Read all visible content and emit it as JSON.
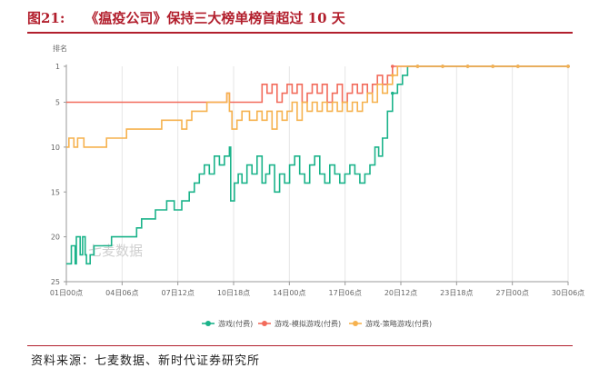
{
  "figure": {
    "number": "图21:",
    "title": "《瘟疫公司》保持三大榜单榜首超过 10 天",
    "source": "资料来源：七麦数据、新时代证券研究所"
  },
  "watermark": "七麦数据",
  "chart_data": {
    "type": "line",
    "ylabel": "排名",
    "ylim": [
      25,
      1
    ],
    "y_inverted": true,
    "yticks": [
      "1",
      "5",
      "10",
      "15",
      "20",
      "25"
    ],
    "xlim": [
      0,
      20
    ],
    "xtick_labels": [
      "01日00点",
      "04日06点",
      "07日12点",
      "10日18点",
      "14日00点",
      "17日06点",
      "20日12点",
      "23日18点",
      "27日00点",
      "30日06点"
    ],
    "grid": "vertical",
    "legend_position": "bottom",
    "series": [
      {
        "name": "游戏(付费)",
        "color": "#1bb38a",
        "points": [
          [
            0,
            23
          ],
          [
            0.2,
            21
          ],
          [
            0.35,
            23
          ],
          [
            0.4,
            20
          ],
          [
            0.55,
            22
          ],
          [
            0.65,
            20
          ],
          [
            0.75,
            22
          ],
          [
            0.8,
            23
          ],
          [
            0.95,
            22
          ],
          [
            1.1,
            21
          ],
          [
            1.5,
            21
          ],
          [
            1.8,
            20
          ],
          [
            2.6,
            20
          ],
          [
            2.8,
            19
          ],
          [
            3.0,
            18
          ],
          [
            3.4,
            18
          ],
          [
            3.55,
            17
          ],
          [
            3.8,
            17
          ],
          [
            4.0,
            16
          ],
          [
            4.3,
            17
          ],
          [
            4.6,
            16
          ],
          [
            4.9,
            15
          ],
          [
            5.1,
            14
          ],
          [
            5.3,
            13
          ],
          [
            5.5,
            12
          ],
          [
            5.7,
            13
          ],
          [
            5.9,
            11
          ],
          [
            6.1,
            12
          ],
          [
            6.3,
            11
          ],
          [
            6.5,
            10
          ],
          [
            6.55,
            16
          ],
          [
            6.7,
            14
          ],
          [
            6.85,
            13
          ],
          [
            7.0,
            14
          ],
          [
            7.2,
            12
          ],
          [
            7.4,
            13
          ],
          [
            7.6,
            11
          ],
          [
            7.8,
            14
          ],
          [
            7.95,
            13
          ],
          [
            8.1,
            12
          ],
          [
            8.3,
            15
          ],
          [
            8.5,
            13
          ],
          [
            8.7,
            14
          ],
          [
            8.9,
            12
          ],
          [
            9.1,
            11
          ],
          [
            9.3,
            13
          ],
          [
            9.5,
            14
          ],
          [
            9.7,
            12
          ],
          [
            9.9,
            11
          ],
          [
            10.1,
            13
          ],
          [
            10.3,
            14
          ],
          [
            10.5,
            12
          ],
          [
            10.7,
            13
          ],
          [
            10.9,
            14
          ],
          [
            11.1,
            13
          ],
          [
            11.3,
            12
          ],
          [
            11.5,
            13
          ],
          [
            11.7,
            14
          ],
          [
            11.9,
            13
          ],
          [
            12.1,
            12
          ],
          [
            12.3,
            10
          ],
          [
            12.45,
            11
          ],
          [
            12.6,
            9
          ],
          [
            12.8,
            6
          ],
          [
            13.0,
            4
          ],
          [
            13.2,
            3
          ],
          [
            13.4,
            2
          ],
          [
            13.6,
            1
          ],
          [
            14.0,
            1
          ],
          [
            15.0,
            1
          ],
          [
            16.0,
            1
          ],
          [
            17.0,
            1
          ],
          [
            18.0,
            1
          ],
          [
            20.0,
            1
          ]
        ]
      },
      {
        "name": "游戏-模拟游戏(付费)",
        "color": "#f26b5b",
        "points": [
          [
            0,
            5
          ],
          [
            1.5,
            5
          ],
          [
            3,
            5
          ],
          [
            4.5,
            5
          ],
          [
            5.8,
            5
          ],
          [
            6.3,
            5
          ],
          [
            6.4,
            4
          ],
          [
            6.5,
            5
          ],
          [
            7.7,
            5
          ],
          [
            7.8,
            3
          ],
          [
            8.0,
            4
          ],
          [
            8.2,
            3
          ],
          [
            8.4,
            5
          ],
          [
            8.6,
            4
          ],
          [
            8.8,
            3
          ],
          [
            9.0,
            4
          ],
          [
            9.2,
            3
          ],
          [
            9.4,
            5
          ],
          [
            9.6,
            4
          ],
          [
            9.8,
            3
          ],
          [
            10.0,
            4
          ],
          [
            10.2,
            3
          ],
          [
            10.4,
            5
          ],
          [
            10.6,
            4
          ],
          [
            10.8,
            3
          ],
          [
            11.0,
            5
          ],
          [
            11.2,
            4
          ],
          [
            11.4,
            3
          ],
          [
            11.6,
            4
          ],
          [
            11.8,
            3
          ],
          [
            12.0,
            4
          ],
          [
            12.2,
            3
          ],
          [
            12.4,
            2
          ],
          [
            12.6,
            3
          ],
          [
            12.8,
            2
          ],
          [
            13.0,
            1
          ],
          [
            13.2,
            1
          ],
          [
            14,
            1
          ],
          [
            15,
            1
          ],
          [
            16,
            1
          ],
          [
            17,
            1
          ],
          [
            18,
            1
          ],
          [
            20,
            1
          ]
        ]
      },
      {
        "name": "游戏-策略游戏(付费)",
        "color": "#f6b24f",
        "points": [
          [
            0,
            10
          ],
          [
            0.1,
            9
          ],
          [
            0.3,
            10
          ],
          [
            0.45,
            9
          ],
          [
            0.7,
            10
          ],
          [
            1.0,
            10
          ],
          [
            1.3,
            10
          ],
          [
            1.6,
            9
          ],
          [
            2.0,
            9
          ],
          [
            2.4,
            8
          ],
          [
            3.0,
            8
          ],
          [
            3.6,
            8
          ],
          [
            3.8,
            7
          ],
          [
            4.5,
            7
          ],
          [
            4.6,
            8
          ],
          [
            4.8,
            7
          ],
          [
            5.0,
            6
          ],
          [
            5.3,
            6
          ],
          [
            5.6,
            5
          ],
          [
            6.3,
            5
          ],
          [
            6.4,
            4
          ],
          [
            6.5,
            6
          ],
          [
            6.6,
            8
          ],
          [
            6.8,
            7
          ],
          [
            7.0,
            6
          ],
          [
            7.3,
            7
          ],
          [
            7.6,
            6
          ],
          [
            7.8,
            7
          ],
          [
            8.0,
            6
          ],
          [
            8.2,
            8
          ],
          [
            8.4,
            6
          ],
          [
            8.6,
            7
          ],
          [
            8.8,
            6
          ],
          [
            9.0,
            5
          ],
          [
            9.2,
            7
          ],
          [
            9.4,
            5
          ],
          [
            9.6,
            6
          ],
          [
            9.8,
            5
          ],
          [
            10.0,
            6
          ],
          [
            10.2,
            5
          ],
          [
            10.4,
            6
          ],
          [
            10.6,
            5
          ],
          [
            10.8,
            6
          ],
          [
            11.0,
            5
          ],
          [
            11.2,
            6
          ],
          [
            11.4,
            5
          ],
          [
            11.6,
            6
          ],
          [
            11.8,
            5
          ],
          [
            12.0,
            4
          ],
          [
            12.2,
            5
          ],
          [
            12.4,
            3
          ],
          [
            12.6,
            4
          ],
          [
            12.8,
            3
          ],
          [
            13.0,
            2
          ],
          [
            13.2,
            1
          ],
          [
            14,
            1
          ],
          [
            15,
            1
          ],
          [
            16,
            1
          ],
          [
            17,
            1
          ],
          [
            18,
            1
          ],
          [
            20,
            1
          ]
        ]
      }
    ]
  }
}
